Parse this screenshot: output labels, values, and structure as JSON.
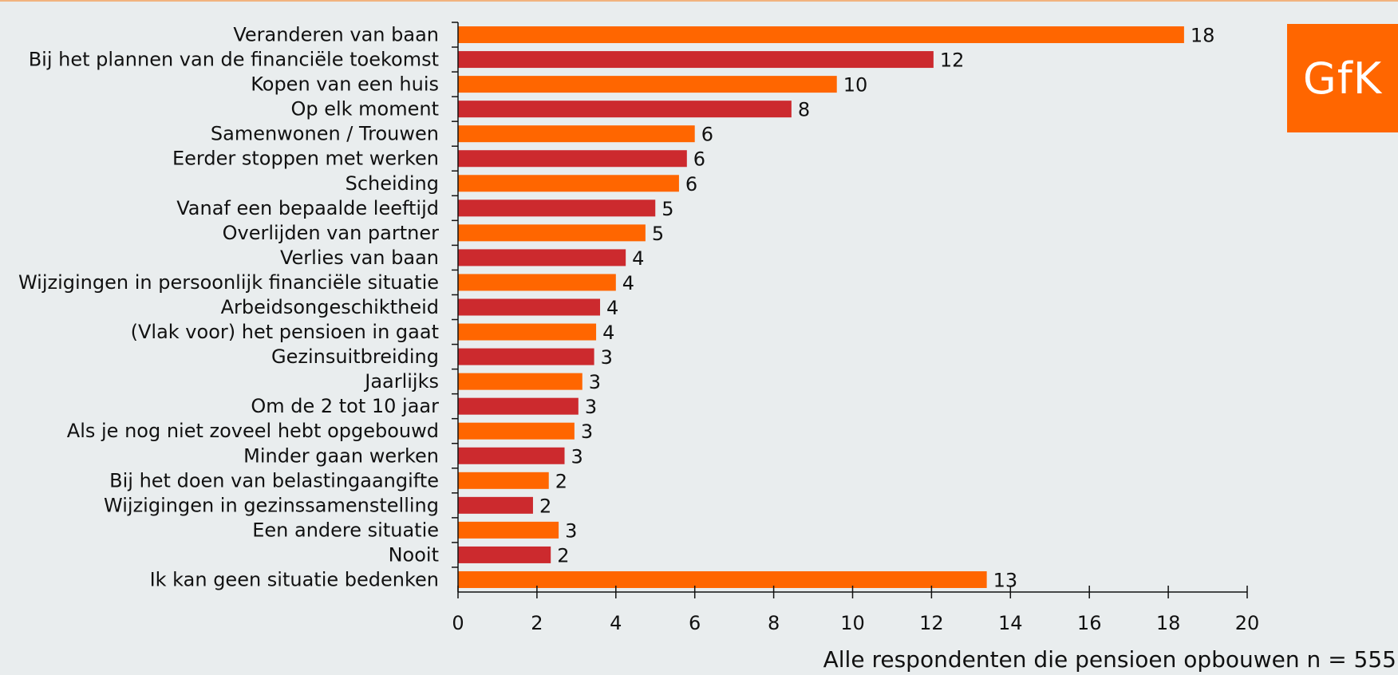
{
  "logo": {
    "text": "GfK",
    "color": "#ff6600"
  },
  "footnote": "Alle respondenten die pensioen opbouwen n = 555",
  "colors": {
    "orange": "#ff6600",
    "red": "#cc2a2e",
    "background": "#e9edee"
  },
  "chart_data": {
    "type": "bar",
    "orientation": "horizontal",
    "title": "",
    "xlabel": "",
    "ylabel": "",
    "xlim": [
      0,
      20
    ],
    "xticks": [
      "0",
      "2",
      "4",
      "6",
      "8",
      "10",
      "12",
      "14",
      "16",
      "18",
      "20"
    ],
    "grid": false,
    "categories": [
      "Veranderen van baan",
      "Bij het plannen van de financiële toekomst",
      "Kopen van een huis",
      "Op elk moment",
      "Samenwonen / Trouwen",
      "Eerder stoppen met werken",
      "Scheiding",
      "Vanaf een bepaalde leeftijd",
      "Overlijden van partner",
      "Verlies van baan",
      "Wijzigingen in persoonlijk financiële situatie",
      "Arbeidsongeschiktheid",
      "(Vlak voor) het pensioen in gaat",
      "Gezinsuitbreiding",
      "Jaarlijks",
      "Om de 2 tot 10 jaar",
      "Als je nog niet zoveel hebt opgebouwd",
      "Minder gaan werken",
      "Bij het doen van belastingaangifte",
      "Wijzigingen in gezinssamenstelling",
      "Een andere situatie",
      "Nooit",
      "Ik kan geen situatie bedenken"
    ],
    "values": [
      18.4,
      12.05,
      9.6,
      8.45,
      6.0,
      5.8,
      5.6,
      5.0,
      4.75,
      4.25,
      4.0,
      3.6,
      3.5,
      3.45,
      3.15,
      3.05,
      2.95,
      2.7,
      2.3,
      1.9,
      2.55,
      2.35,
      13.4
    ],
    "data_labels": [
      "18",
      "12",
      "10",
      "8",
      "6",
      "6",
      "6",
      "5",
      "5",
      "4",
      "4",
      "4",
      "4",
      "3",
      "3",
      "3",
      "3",
      "3",
      "2",
      "2",
      "3",
      "2",
      "13"
    ],
    "bar_colors": [
      "orange",
      "red",
      "orange",
      "red",
      "orange",
      "red",
      "orange",
      "red",
      "orange",
      "red",
      "orange",
      "red",
      "orange",
      "red",
      "orange",
      "red",
      "orange",
      "red",
      "orange",
      "red",
      "orange",
      "red",
      "orange"
    ]
  }
}
